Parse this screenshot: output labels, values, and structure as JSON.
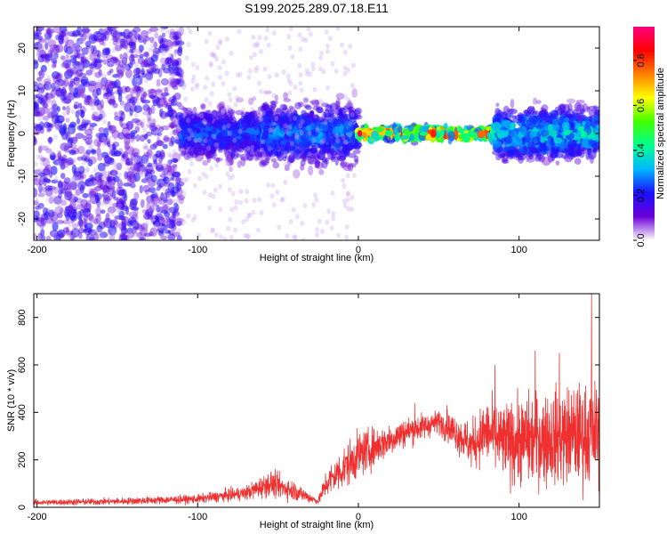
{
  "title": "S199.2025.289.07.18.E11",
  "chart_data": [
    {
      "type": "heatmap",
      "xlabel": "Height of straight line (km)",
      "ylabel": "Frequency (Hz)",
      "xlim": [
        -202,
        150
      ],
      "ylim": [
        -25,
        25
      ],
      "xticks": [
        {
          "value": -200,
          "label": "-200"
        },
        {
          "value": -100,
          "label": "-100"
        },
        {
          "value": 0,
          "label": "0"
        },
        {
          "value": 100,
          "label": "100"
        }
      ],
      "yticks": [
        {
          "value": 20,
          "label": "20"
        },
        {
          "value": 10,
          "label": "10"
        },
        {
          "value": 0,
          "label": "0"
        },
        {
          "value": -10,
          "label": "-10"
        },
        {
          "value": -20,
          "label": "-20"
        }
      ],
      "colorbar": {
        "label": "Normalized spectral amplitude",
        "range": [
          0,
          0.95
        ],
        "ticks": [
          {
            "value": 0.0,
            "label": "0.0"
          },
          {
            "value": 0.2,
            "label": "0.2"
          },
          {
            "value": 0.4,
            "label": "0.4"
          },
          {
            "value": 0.6,
            "label": "0.6"
          },
          {
            "value": 0.8,
            "label": "0.8"
          }
        ],
        "colors": [
          "#ffffff",
          "#6a00d8",
          "#1a10ff",
          "#00b8ff",
          "#00ff90",
          "#40ff00",
          "#ffff00",
          "#ff8000",
          "#ff0000",
          "#ff0080"
        ]
      },
      "bands": [
        {
          "x0": -202,
          "x1": -110,
          "f_halfwidth": 25,
          "peak_amplitude": 0.15,
          "density": "sparse-scattered"
        },
        {
          "x0": -110,
          "x1": -60,
          "f_halfwidth": 5,
          "peak_amplitude": 0.25,
          "density": "concentrated"
        },
        {
          "x0": -60,
          "x1": 0,
          "f_halfwidth": 6,
          "peak_amplitude": 0.3,
          "density": "concentrated"
        },
        {
          "x0": 0,
          "x1": 85,
          "f_halfwidth": 2,
          "peak_amplitude": 0.92,
          "density": "narrow-line"
        },
        {
          "x0": 85,
          "x1": 150,
          "f_halfwidth": 5,
          "peak_amplitude": 0.4,
          "density": "concentrated"
        }
      ]
    },
    {
      "type": "line",
      "xlabel": "Height of straight line (km)",
      "ylabel": "SNR (10 * v/v)",
      "xlim": [
        -202,
        150
      ],
      "ylim": [
        0,
        900
      ],
      "line_color": "#ee3030",
      "xticks": [
        {
          "value": -200,
          "label": "-200"
        },
        {
          "value": -100,
          "label": "-100"
        },
        {
          "value": 0,
          "label": "0"
        },
        {
          "value": 100,
          "label": "100"
        }
      ],
      "yticks": [
        {
          "value": 0,
          "label": "0"
        },
        {
          "value": 200,
          "label": "200"
        },
        {
          "value": 400,
          "label": "400"
        },
        {
          "value": 600,
          "label": "600"
        },
        {
          "value": 800,
          "label": "800"
        }
      ],
      "envelope": [
        {
          "x": -202,
          "mean": 20,
          "spread": 10
        },
        {
          "x": -150,
          "mean": 25,
          "spread": 12
        },
        {
          "x": -100,
          "mean": 35,
          "spread": 15
        },
        {
          "x": -70,
          "mean": 60,
          "spread": 25
        },
        {
          "x": -55,
          "mean": 100,
          "spread": 45
        },
        {
          "x": -40,
          "mean": 70,
          "spread": 35
        },
        {
          "x": -25,
          "mean": 25,
          "spread": 10
        },
        {
          "x": -20,
          "mean": 100,
          "spread": 50
        },
        {
          "x": -10,
          "mean": 160,
          "spread": 70
        },
        {
          "x": 0,
          "mean": 220,
          "spread": 80
        },
        {
          "x": 15,
          "mean": 270,
          "spread": 60
        },
        {
          "x": 30,
          "mean": 320,
          "spread": 50
        },
        {
          "x": 50,
          "mean": 360,
          "spread": 40
        },
        {
          "x": 60,
          "mean": 320,
          "spread": 60
        },
        {
          "x": 70,
          "mean": 260,
          "spread": 80
        },
        {
          "x": 80,
          "mean": 320,
          "spread": 110
        },
        {
          "x": 90,
          "mean": 270,
          "spread": 130
        },
        {
          "x": 100,
          "mean": 280,
          "spread": 150
        },
        {
          "x": 115,
          "mean": 290,
          "spread": 160
        },
        {
          "x": 130,
          "mean": 300,
          "spread": 170
        },
        {
          "x": 150,
          "mean": 310,
          "spread": 180
        }
      ],
      "peaks": [
        {
          "x": 35,
          "y": 440
        },
        {
          "x": 55,
          "y": 430
        },
        {
          "x": 85,
          "y": 600
        },
        {
          "x": 110,
          "y": 660
        },
        {
          "x": 125,
          "y": 650
        },
        {
          "x": 145,
          "y": 900
        }
      ]
    }
  ]
}
